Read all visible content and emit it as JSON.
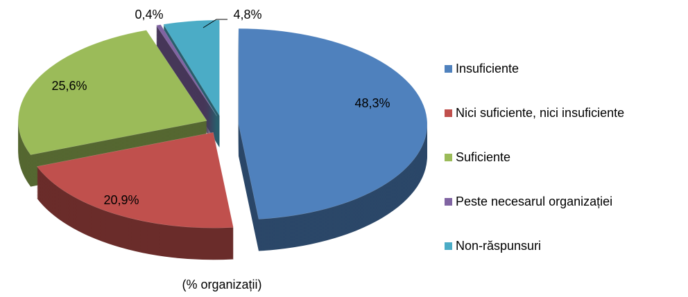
{
  "chart_data": {
    "type": "pie",
    "subtitle": "(% organizații)",
    "categories": [
      "Insuficiente",
      "Nici suficiente, nici insuficiente",
      "Suficiente",
      "Peste necesarul organizației",
      "Non-răspunsuri"
    ],
    "values": [
      48.3,
      20.9,
      25.6,
      0.4,
      4.8
    ],
    "value_labels": [
      "48,3%",
      "20,9%",
      "25,6%",
      "0,4%",
      "4,8%"
    ],
    "colors": [
      "#4f81bd",
      "#c0504d",
      "#9bbb59",
      "#8064a2",
      "#4bacc6"
    ],
    "legend": "right"
  }
}
